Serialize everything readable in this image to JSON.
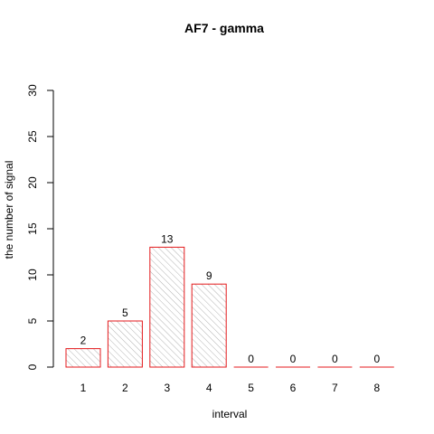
{
  "chart_data": {
    "type": "bar",
    "title": "AF7  -  gamma",
    "xlabel": "interval",
    "ylabel": "the number of signal",
    "categories": [
      "1",
      "2",
      "3",
      "4",
      "5",
      "6",
      "7",
      "8"
    ],
    "values": [
      2,
      5,
      13,
      9,
      0,
      0,
      0,
      0
    ],
    "data_labels": [
      "2",
      "5",
      "13",
      "9",
      "0",
      "0",
      "0",
      "0"
    ],
    "ylim": [
      0,
      30
    ],
    "yticks": [
      0,
      5,
      10,
      15,
      20,
      25,
      30
    ],
    "ytick_labels": [
      "0",
      "5",
      "10",
      "15",
      "20",
      "25",
      "30"
    ],
    "grid": false,
    "legend": "none",
    "bar_border_color": "#e41a1c",
    "bar_hatch_color": "#a0a0a0",
    "axis_color": "#000000"
  }
}
